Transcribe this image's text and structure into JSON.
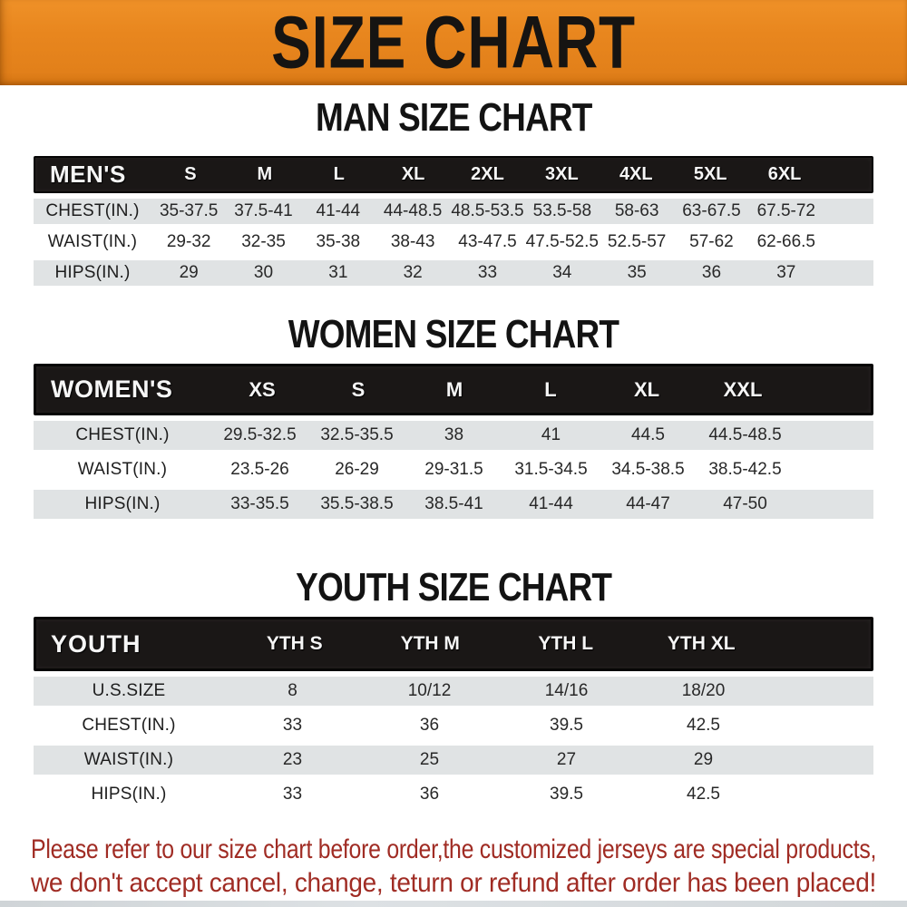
{
  "banner": {
    "title": "SIZE CHART"
  },
  "colors": {
    "banner_orange": "#E8861E",
    "header_black": "#1A1716",
    "row_gray": "#E0E3E4",
    "disclaimer_red": "#A02C24"
  },
  "sections": [
    {
      "heading": "MAN SIZE CHART",
      "table": {
        "label": "MEN'S",
        "columns": [
          "S",
          "M",
          "L",
          "XL",
          "2XL",
          "3XL",
          "4XL",
          "5XL",
          "6XL"
        ],
        "rows": [
          {
            "label": "CHEST(IN.)",
            "values": [
              "35-37.5",
              "37.5-41",
              "41-44",
              "44-48.5",
              "48.5-53.5",
              "53.5-58",
              "58-63",
              "63-67.5",
              "67.5-72"
            ]
          },
          {
            "label": "WAIST(IN.)",
            "values": [
              "29-32",
              "32-35",
              "35-38",
              "38-43",
              "43-47.5",
              "47.5-52.5",
              "52.5-57",
              "57-62",
              "62-66.5"
            ]
          },
          {
            "label": "HIPS(IN.)",
            "values": [
              "29",
              "30",
              "31",
              "32",
              "33",
              "34",
              "35",
              "36",
              "37"
            ]
          }
        ]
      }
    },
    {
      "heading": "WOMEN SIZE CHART",
      "table": {
        "label": "WOMEN'S",
        "columns": [
          "XS",
          "S",
          "M",
          "L",
          "XL",
          "XXL"
        ],
        "rows": [
          {
            "label": "CHEST(IN.)",
            "values": [
              "29.5-32.5",
              "32.5-35.5",
              "38",
              "41",
              "44.5",
              "44.5-48.5"
            ]
          },
          {
            "label": "WAIST(IN.)",
            "values": [
              "23.5-26",
              "26-29",
              "29-31.5",
              "31.5-34.5",
              "34.5-38.5",
              "38.5-42.5"
            ]
          },
          {
            "label": "HIPS(IN.)",
            "values": [
              "33-35.5",
              "35.5-38.5",
              "38.5-41",
              "41-44",
              "44-47",
              "47-50"
            ]
          }
        ]
      }
    },
    {
      "heading": "YOUTH SIZE CHART",
      "table": {
        "label": "YOUTH",
        "columns": [
          "YTH S",
          "YTH M",
          "YTH L",
          "YTH XL"
        ],
        "rows": [
          {
            "label": "U.S.SIZE",
            "values": [
              "8",
              "10/12",
              "14/16",
              "18/20"
            ]
          },
          {
            "label": "CHEST(IN.)",
            "values": [
              "33",
              "36",
              "39.5",
              "42.5"
            ]
          },
          {
            "label": "WAIST(IN.)",
            "values": [
              "23",
              "25",
              "27",
              "29"
            ]
          },
          {
            "label": "HIPS(IN.)",
            "values": [
              "33",
              "36",
              "39.5",
              "42.5"
            ]
          }
        ]
      }
    }
  ],
  "disclaimer": {
    "line1": "Please refer to our size chart before order,the customized jerseys are special products,",
    "line2": "we don't accept cancel, change, teturn or refund after order has been placed!"
  }
}
